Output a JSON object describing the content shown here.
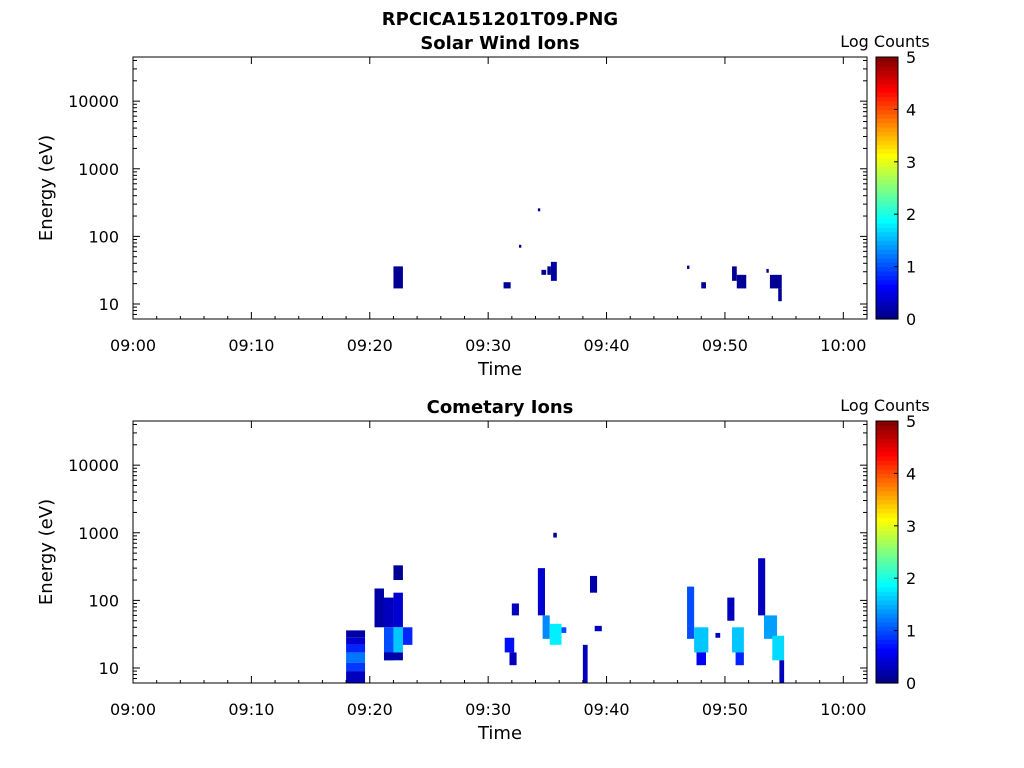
{
  "figure_title": "RPCICA151201T09.PNG",
  "chart_data": [
    {
      "type": "heatmap",
      "title": "Solar Wind Ions",
      "xlabel": "Time",
      "ylabel": "Energy (eV)",
      "x_ticks": [
        "09:00",
        "09:10",
        "09:20",
        "09:30",
        "09:40",
        "09:50",
        "10:00"
      ],
      "y_ticks": [
        "10",
        "100",
        "1000",
        "10000"
      ],
      "x_range_minutes": [
        0,
        62
      ],
      "y_range_eV": [
        6,
        45000
      ],
      "y_scale": "log",
      "colorbar": {
        "label": "Log Counts",
        "ticks": [
          "0",
          "1",
          "2",
          "3",
          "4",
          "5"
        ],
        "range": [
          0,
          5
        ],
        "colormap": "jet"
      },
      "cells": [
        {
          "t0": 22.0,
          "t1": 22.8,
          "e0": 17,
          "e1": 36,
          "v": 0.1
        },
        {
          "t0": 31.3,
          "t1": 31.9,
          "e0": 17,
          "e1": 21,
          "v": 0.1
        },
        {
          "t0": 34.2,
          "t1": 34.4,
          "e0": 235,
          "e1": 260,
          "v": 0.1
        },
        {
          "t0": 32.6,
          "t1": 32.8,
          "e0": 68,
          "e1": 75,
          "v": 0.1
        },
        {
          "t0": 34.5,
          "t1": 34.9,
          "e0": 27,
          "e1": 32,
          "v": 0.1
        },
        {
          "t0": 35.0,
          "t1": 35.3,
          "e0": 27,
          "e1": 36,
          "v": 0.1
        },
        {
          "t0": 35.3,
          "t1": 35.8,
          "e0": 22,
          "e1": 42,
          "v": 0.15
        },
        {
          "t0": 46.8,
          "t1": 47.0,
          "e0": 33,
          "e1": 37,
          "v": 0.1
        },
        {
          "t0": 48.0,
          "t1": 48.4,
          "e0": 17,
          "e1": 21,
          "v": 0.1
        },
        {
          "t0": 50.6,
          "t1": 51.0,
          "e0": 22,
          "e1": 36,
          "v": 0.1
        },
        {
          "t0": 51.0,
          "t1": 51.8,
          "e0": 17,
          "e1": 27,
          "v": 0.1
        },
        {
          "t0": 53.5,
          "t1": 53.7,
          "e0": 29,
          "e1": 33,
          "v": 0.1
        },
        {
          "t0": 53.8,
          "t1": 54.8,
          "e0": 17,
          "e1": 27,
          "v": 0.1
        },
        {
          "t0": 54.5,
          "t1": 54.8,
          "e0": 11,
          "e1": 17,
          "v": 0.1
        }
      ]
    },
    {
      "type": "heatmap",
      "title": "Cometary Ions",
      "xlabel": "Time",
      "ylabel": "Energy (eV)",
      "x_ticks": [
        "09:00",
        "09:10",
        "09:20",
        "09:30",
        "09:40",
        "09:50",
        "10:00"
      ],
      "y_ticks": [
        "10",
        "100",
        "1000",
        "10000"
      ],
      "x_range_minutes": [
        0,
        62
      ],
      "y_range_eV": [
        6,
        45000
      ],
      "y_scale": "log",
      "colorbar": {
        "label": "Log Counts",
        "ticks": [
          "0",
          "1",
          "2",
          "3",
          "4",
          "5"
        ],
        "range": [
          0,
          5
        ],
        "colormap": "jet"
      },
      "cells": [
        {
          "t0": 18.0,
          "t1": 19.6,
          "e0": 6,
          "e1": 9,
          "v": 0.3
        },
        {
          "t0": 18.0,
          "t1": 19.6,
          "e0": 9,
          "e1": 12,
          "v": 0.9
        },
        {
          "t0": 18.0,
          "t1": 19.6,
          "e0": 12,
          "e1": 17,
          "v": 1.2
        },
        {
          "t0": 18.0,
          "t1": 19.6,
          "e0": 17,
          "e1": 22,
          "v": 0.8
        },
        {
          "t0": 18.0,
          "t1": 19.6,
          "e0": 22,
          "e1": 28,
          "v": 0.4
        },
        {
          "t0": 18.0,
          "t1": 19.6,
          "e0": 28,
          "e1": 36,
          "v": 0.2
        },
        {
          "t0": 20.4,
          "t1": 21.2,
          "e0": 40,
          "e1": 150,
          "v": 0.2
        },
        {
          "t0": 21.2,
          "t1": 22.0,
          "e0": 40,
          "e1": 110,
          "v": 0.3
        },
        {
          "t0": 22.0,
          "t1": 22.8,
          "e0": 40,
          "e1": 130,
          "v": 0.4
        },
        {
          "t0": 21.2,
          "t1": 22.0,
          "e0": 13,
          "e1": 40,
          "v": 1.0
        },
        {
          "t0": 22.0,
          "t1": 22.8,
          "e0": 17,
          "e1": 40,
          "v": 1.6
        },
        {
          "t0": 22.8,
          "t1": 23.6,
          "e0": 22,
          "e1": 40,
          "v": 0.8
        },
        {
          "t0": 21.2,
          "t1": 22.8,
          "e0": 13,
          "e1": 17,
          "v": 0.2
        },
        {
          "t0": 22.0,
          "t1": 22.8,
          "e0": 200,
          "e1": 330,
          "v": 0.1
        },
        {
          "t0": 31.4,
          "t1": 32.2,
          "e0": 17,
          "e1": 28,
          "v": 0.7
        },
        {
          "t0": 32.0,
          "t1": 32.6,
          "e0": 60,
          "e1": 90,
          "v": 0.3
        },
        {
          "t0": 31.8,
          "t1": 32.4,
          "e0": 11,
          "e1": 17,
          "v": 0.3
        },
        {
          "t0": 34.2,
          "t1": 34.8,
          "e0": 60,
          "e1": 300,
          "v": 0.4
        },
        {
          "t0": 34.6,
          "t1": 35.2,
          "e0": 27,
          "e1": 60,
          "v": 1.3
        },
        {
          "t0": 35.2,
          "t1": 36.2,
          "e0": 22,
          "e1": 45,
          "v": 1.8
        },
        {
          "t0": 36.2,
          "t1": 36.6,
          "e0": 33,
          "e1": 40,
          "v": 1.0
        },
        {
          "t0": 35.5,
          "t1": 35.8,
          "e0": 850,
          "e1": 1000,
          "v": 0.1
        },
        {
          "t0": 38.0,
          "t1": 38.4,
          "e0": 6,
          "e1": 22,
          "v": 0.3
        },
        {
          "t0": 38.6,
          "t1": 39.2,
          "e0": 130,
          "e1": 230,
          "v": 0.2
        },
        {
          "t0": 39.0,
          "t1": 39.6,
          "e0": 35,
          "e1": 42,
          "v": 0.3
        },
        {
          "t0": 46.8,
          "t1": 47.4,
          "e0": 27,
          "e1": 160,
          "v": 1.0
        },
        {
          "t0": 47.4,
          "t1": 48.6,
          "e0": 17,
          "e1": 40,
          "v": 1.6
        },
        {
          "t0": 47.6,
          "t1": 48.4,
          "e0": 11,
          "e1": 17,
          "v": 0.6
        },
        {
          "t0": 49.2,
          "t1": 49.6,
          "e0": 28,
          "e1": 33,
          "v": 0.3
        },
        {
          "t0": 50.2,
          "t1": 50.8,
          "e0": 50,
          "e1": 110,
          "v": 0.3
        },
        {
          "t0": 50.6,
          "t1": 51.6,
          "e0": 17,
          "e1": 40,
          "v": 1.6
        },
        {
          "t0": 50.9,
          "t1": 51.6,
          "e0": 11,
          "e1": 17,
          "v": 0.8
        },
        {
          "t0": 52.8,
          "t1": 53.4,
          "e0": 60,
          "e1": 420,
          "v": 0.3
        },
        {
          "t0": 53.3,
          "t1": 54.4,
          "e0": 27,
          "e1": 60,
          "v": 1.4
        },
        {
          "t0": 54.0,
          "t1": 55.0,
          "e0": 13,
          "e1": 30,
          "v": 1.7
        },
        {
          "t0": 54.6,
          "t1": 55.0,
          "e0": 6,
          "e1": 13,
          "v": 0.3
        }
      ]
    }
  ]
}
